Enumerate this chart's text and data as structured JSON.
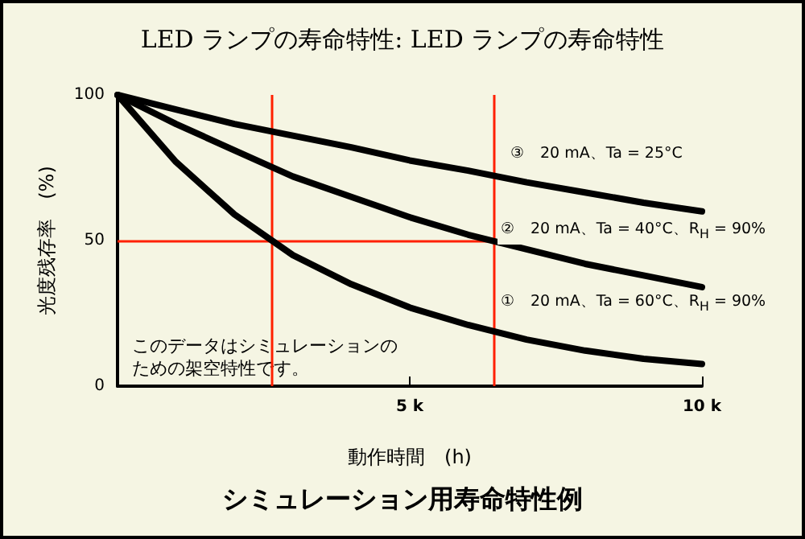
{
  "chart_data": {
    "type": "line",
    "title": "LED ランプの寿命特性: LED ランプの寿命特性",
    "xlabel": "動作時間　(h)",
    "ylabel": "光度残存率　(%)",
    "annotations": [
      "このデータはシミュレーションのための架空特性です。",
      "シミュレーション用寿命特性例"
    ],
    "x": [
      0,
      1000,
      2000,
      3000,
      4000,
      5000,
      6000,
      7000,
      8000,
      9000,
      10000
    ],
    "series": [
      {
        "name": "③　20 mA、Ta = 25°C",
        "color": "#000000",
        "values": [
          100,
          95,
          90,
          86,
          82,
          77.5,
          74,
          70,
          66.5,
          63,
          60
        ]
      },
      {
        "name": "②　20 mA、Ta = 40°C、R$_{H}$ = 90%",
        "color": "#000000",
        "values": [
          100,
          90,
          81,
          72,
          65,
          58,
          52,
          47,
          42,
          38,
          34
        ]
      },
      {
        "name": "①　20 mA、Ta = 60°C、R$_{H}$ = 90%",
        "color": "#000000",
        "values": [
          100,
          77,
          59,
          45,
          35,
          27,
          21,
          16,
          12.2,
          9.4,
          7.6
        ]
      }
    ],
    "xlim": [
      0,
      10000
    ],
    "xticks": [
      {
        "value": 5000,
        "label": "5 k"
      },
      {
        "value": 10000,
        "label": "10 k"
      }
    ],
    "ylim": [
      0,
      100
    ],
    "yticks": [
      0,
      50,
      100
    ],
    "ref_lines": [
      {
        "axis": "y",
        "value": 50,
        "color": "#ff2000"
      },
      {
        "axis": "x",
        "value": 2640,
        "color": "#ff2000"
      },
      {
        "axis": "x",
        "value": 6430,
        "color": "#ff2000"
      }
    ],
    "grid": false,
    "legend": false,
    "marker": "none",
    "line_style": "solid"
  }
}
